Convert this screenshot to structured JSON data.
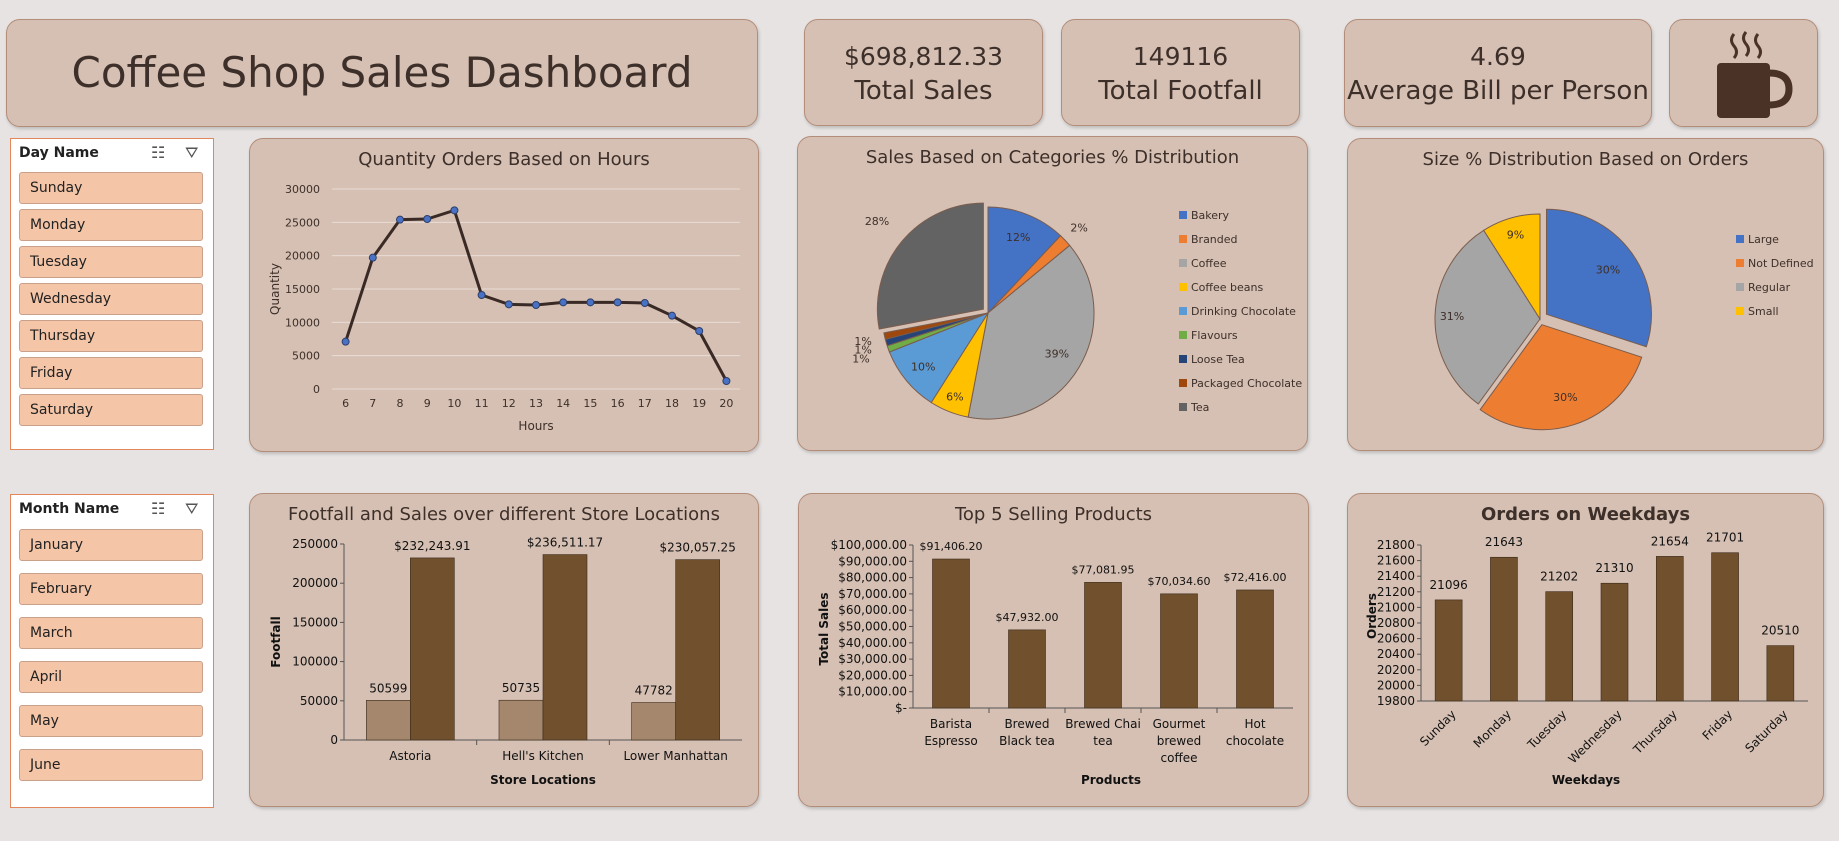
{
  "header": {
    "title": "Coffee Shop Sales Dashboard"
  },
  "kpis": [
    {
      "value": "$698,812.33",
      "label": "Total Sales"
    },
    {
      "value": "149116",
      "label": "Total Footfall"
    },
    {
      "value": "4.69",
      "label": "Average Bill per Person"
    }
  ],
  "logo": {
    "icon": "coffee-cup-icon"
  },
  "slicers": {
    "day": {
      "label": "Day Name",
      "items": [
        "Sunday",
        "Monday",
        "Tuesday",
        "Wednesday",
        "Thursday",
        "Friday",
        "Saturday"
      ]
    },
    "month": {
      "label": "Month Name",
      "items": [
        "January",
        "February",
        "March",
        "April",
        "May",
        "June"
      ]
    }
  },
  "colors": {
    "background": "#e7e3e3",
    "panel": "#d6c0b3",
    "bar": "#71512d",
    "bar_light": "#a5876d",
    "slicer_item": "#f5c5a8"
  },
  "chart_data": [
    {
      "id": "hours",
      "type": "line",
      "title": "Quantity Orders Based on Hours",
      "xlabel": "Hours",
      "ylabel": "Quantity",
      "x": [
        6,
        7,
        8,
        9,
        10,
        11,
        12,
        13,
        14,
        15,
        16,
        17,
        18,
        19,
        20
      ],
      "values": [
        7100,
        19700,
        25400,
        25500,
        26800,
        14100,
        12700,
        12600,
        13000,
        13000,
        13000,
        12900,
        11000,
        8700,
        1200
      ],
      "ylim": [
        0,
        30000
      ],
      "yticks": [
        "0",
        "5000",
        "10000",
        "15000",
        "20000",
        "25000",
        "30000"
      ],
      "grid": true
    },
    {
      "id": "categories",
      "type": "pie",
      "title": "Sales Based on Categories % Distribution",
      "legend": "right",
      "slices": [
        {
          "name": "Bakery",
          "value": 12,
          "label": "12%",
          "color": "#4472c4"
        },
        {
          "name": "Branded",
          "value": 2,
          "label": "2%",
          "color": "#ed7d31"
        },
        {
          "name": "Coffee",
          "value": 39,
          "label": "39%",
          "color": "#a5a5a5"
        },
        {
          "name": "Coffee beans",
          "value": 6,
          "label": "6%",
          "color": "#ffc000"
        },
        {
          "name": "Drinking Chocolate",
          "value": 10,
          "label": "10%",
          "color": "#5b9bd5"
        },
        {
          "name": "Flavours",
          "value": 1,
          "label": "1%",
          "color": "#70ad47"
        },
        {
          "name": "Loose Tea",
          "value": 1,
          "label": "1%",
          "color": "#264478"
        },
        {
          "name": "Packaged Chocolate",
          "value": 1,
          "label": "1%",
          "color": "#9e480e"
        },
        {
          "name": "Tea",
          "value": 28,
          "label": "28%",
          "color": "#636363"
        }
      ]
    },
    {
      "id": "sizes",
      "type": "pie",
      "title": "Size % Distribution Based on Orders",
      "legend": "right",
      "slices": [
        {
          "name": "Large",
          "value": 30,
          "label": "30%",
          "color": "#4472c4"
        },
        {
          "name": "Not Defined",
          "value": 30,
          "label": "30%",
          "color": "#ed7d31"
        },
        {
          "name": "Regular",
          "value": 31,
          "label": "31%",
          "color": "#a5a5a5"
        },
        {
          "name": "Small",
          "value": 9,
          "label": "9%",
          "color": "#ffc000"
        }
      ]
    },
    {
      "id": "stores",
      "type": "bar",
      "title": "Footfall and Sales over different Store Locations",
      "xlabel": "Store Locations",
      "ylabel": "Footfall",
      "categories": [
        "Astoria",
        "Hell's Kitchen",
        "Lower Manhattan"
      ],
      "series": [
        {
          "values": [
            50599,
            50735,
            47782
          ],
          "labels": [
            "50599",
            "50735",
            "47782"
          ]
        },
        {
          "values": [
            232243.91,
            236511.17,
            230057.25
          ],
          "labels": [
            "$232,243.91",
            "$236,511.17",
            "$230,057.25"
          ]
        }
      ],
      "ylim": [
        0,
        250000
      ],
      "yticks": [
        "0",
        "50000",
        "100000",
        "150000",
        "200000",
        "250000"
      ]
    },
    {
      "id": "products",
      "type": "bar",
      "title": "Top 5 Selling Products",
      "xlabel": "Products",
      "ylabel": "Total Sales",
      "categories": [
        [
          "Barista",
          "Espresso"
        ],
        [
          "Brewed",
          "Black tea"
        ],
        [
          "Brewed Chai",
          "tea"
        ],
        [
          "Gourmet",
          "brewed",
          "coffee"
        ],
        [
          "Hot",
          "chocolate"
        ]
      ],
      "values": [
        91406.2,
        47932.0,
        77081.95,
        70034.6,
        72416.0
      ],
      "labels": [
        "$91,406.20",
        "$47,932.00",
        "$77,081.95",
        "$70,034.60",
        "$72,416.00"
      ],
      "ylim": [
        0,
        100000
      ],
      "yticks": [
        "$-",
        "$10,000.00",
        "$20,000.00",
        "$30,000.00",
        "$40,000.00",
        "$50,000.00",
        "$60,000.00",
        "$70,000.00",
        "$80,000.00",
        "$90,000.00",
        "$100,000.00"
      ]
    },
    {
      "id": "weekdays",
      "type": "bar",
      "title": "Orders on Weekdays",
      "xlabel": "Weekdays",
      "ylabel": "Orders",
      "categories": [
        "Sunday",
        "Monday",
        "Tuesday",
        "Wednesday",
        "Thursday",
        "Friday",
        "Saturday"
      ],
      "values": [
        21096,
        21643,
        21202,
        21310,
        21654,
        21701,
        20510
      ],
      "labels": [
        "21096",
        "21643",
        "21202",
        "21310",
        "21654",
        "21701",
        "20510"
      ],
      "ylim": [
        19800,
        21800
      ],
      "yticks": [
        "19800",
        "20000",
        "20200",
        "20400",
        "20600",
        "20800",
        "21000",
        "21200",
        "21400",
        "21600",
        "21800"
      ]
    }
  ]
}
